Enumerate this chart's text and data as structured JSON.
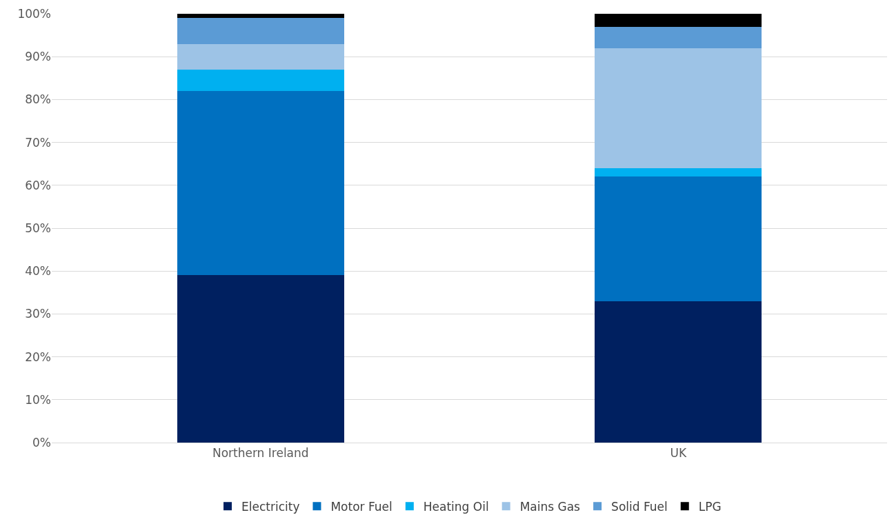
{
  "chart_data": {
    "type": "bar",
    "stacked": true,
    "categories": [
      "Northern Ireland",
      "UK"
    ],
    "series": [
      {
        "name": "Electricity",
        "color": "#002060",
        "values": [
          39,
          33
        ]
      },
      {
        "name": "Motor Fuel",
        "color": "#0070c0",
        "values": [
          43,
          29
        ]
      },
      {
        "name": "Heating Oil",
        "color": "#00b0f0",
        "values": [
          5,
          2
        ]
      },
      {
        "name": "Mains Gas",
        "color": "#9dc3e6",
        "values": [
          6,
          28
        ]
      },
      {
        "name": "Solid Fuel",
        "color": "#5b9bd5",
        "values": [
          6,
          5
        ]
      },
      {
        "name": "LPG",
        "color": "#000000",
        "values": [
          1,
          3
        ]
      }
    ],
    "ylim": [
      0,
      100
    ],
    "yticks": [
      {
        "value": 0,
        "label": "0%"
      },
      {
        "value": 10,
        "label": "10%"
      },
      {
        "value": 20,
        "label": "20%"
      },
      {
        "value": 30,
        "label": "30%"
      },
      {
        "value": 40,
        "label": "40%"
      },
      {
        "value": 50,
        "label": "50%"
      },
      {
        "value": 60,
        "label": "60%"
      },
      {
        "value": 70,
        "label": "70%"
      },
      {
        "value": 80,
        "label": "80%"
      },
      {
        "value": 90,
        "label": "90%"
      },
      {
        "value": 100,
        "label": "100%"
      }
    ],
    "grid": "y",
    "legend": "bottom"
  }
}
